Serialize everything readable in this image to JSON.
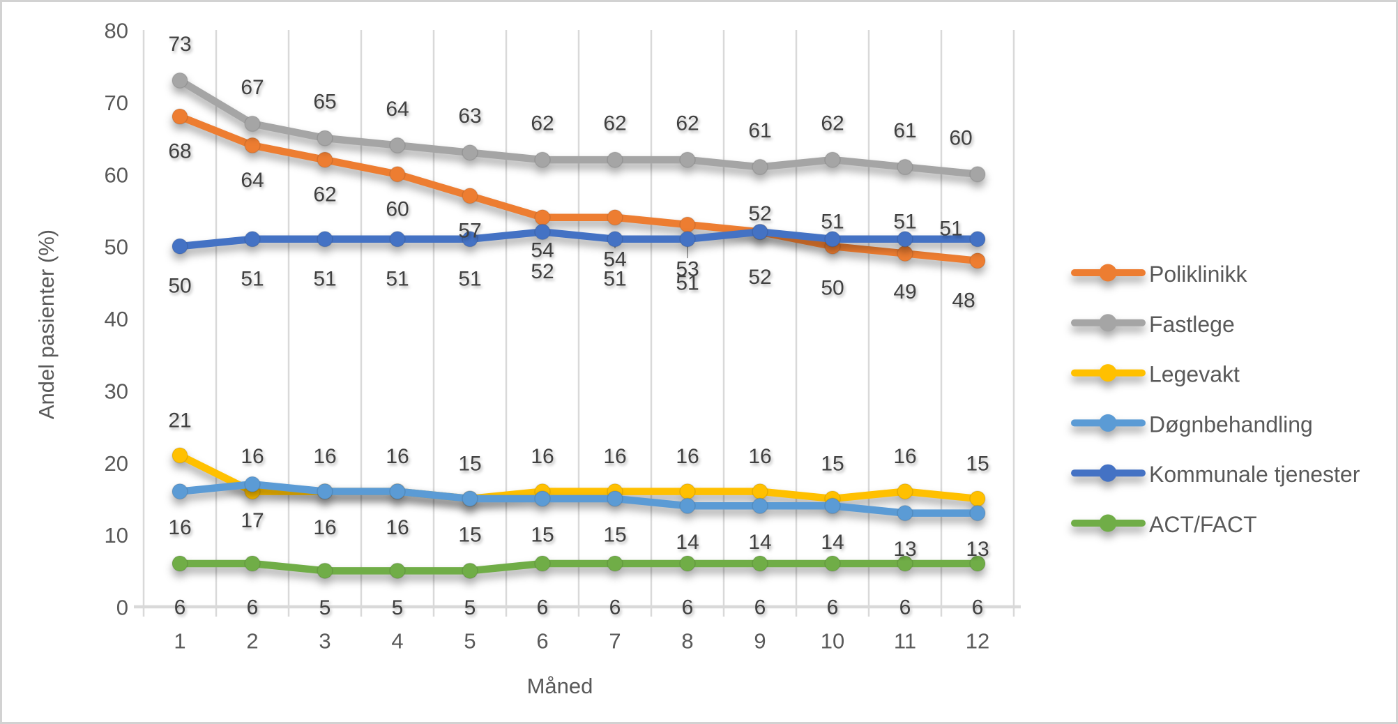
{
  "chart_data": {
    "type": "line",
    "title": "",
    "xlabel": "Måned",
    "ylabel": "Andel pasienter (%)",
    "categories": [
      1,
      2,
      3,
      4,
      5,
      6,
      7,
      8,
      9,
      10,
      11,
      12
    ],
    "ylim": [
      0,
      80
    ],
    "yticks": [
      0,
      10,
      20,
      30,
      40,
      50,
      60,
      70,
      80
    ],
    "grid": "vertical-only",
    "legend_position": "right",
    "series": [
      {
        "name": "Poliklinikk",
        "color": "#ED7D31",
        "values": [
          68,
          64,
          62,
          60,
          57,
          54,
          54,
          53,
          52,
          50,
          49,
          48
        ]
      },
      {
        "name": "Fastlege",
        "color": "#A5A5A5",
        "values": [
          73,
          67,
          65,
          64,
          63,
          62,
          62,
          62,
          61,
          62,
          61,
          60
        ]
      },
      {
        "name": "Legevakt",
        "color": "#FFC000",
        "values": [
          21,
          16,
          16,
          16,
          15,
          16,
          16,
          16,
          16,
          15,
          16,
          15
        ]
      },
      {
        "name": "Døgnbehandling",
        "color": "#5B9BD5",
        "values": [
          16,
          17,
          16,
          16,
          15,
          15,
          15,
          14,
          14,
          14,
          13,
          13
        ]
      },
      {
        "name": "Kommunale tjenester",
        "color": "#4472C4",
        "values": [
          50,
          51,
          51,
          51,
          51,
          52,
          51,
          51,
          52,
          51,
          51,
          51
        ]
      },
      {
        "name": "ACT/FACT",
        "color": "#70AD47",
        "values": [
          6,
          6,
          5,
          5,
          5,
          6,
          6,
          6,
          6,
          6,
          6,
          6
        ]
      }
    ],
    "colors": {
      "gridline": "#D9D9D9",
      "axis_line": "#D9D9D9",
      "leader_line": "#A6A6A6",
      "tick_label": "#595959",
      "data_label": "#404040",
      "legend_text": "#595959"
    }
  }
}
